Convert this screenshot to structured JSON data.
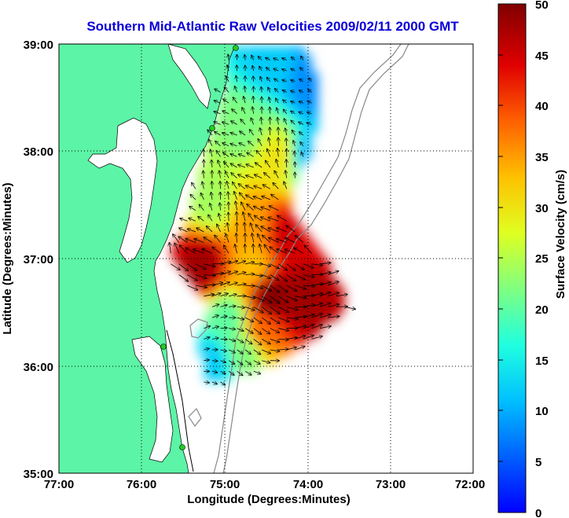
{
  "title": "Southern Mid-Atlantic Raw Velocities 2009/02/11 2000 GMT",
  "x_axis": {
    "label": "Longitude (Degrees:Minutes)",
    "ticks": [
      "77:00",
      "76:00",
      "75:00",
      "74:00",
      "73:00",
      "72:00"
    ]
  },
  "y_axis": {
    "label": "Latitude (Degrees:Minutes)",
    "ticks": [
      "39:00",
      "38:00",
      "37:00",
      "36:00",
      "35:00"
    ]
  },
  "colorbar": {
    "label": "Surface Velocity (cm/s)",
    "ticks": [
      "50",
      "45",
      "40",
      "35",
      "30",
      "25",
      "20",
      "15",
      "10",
      "5",
      "0"
    ],
    "min": 0,
    "max": 50,
    "colormap": "jet"
  },
  "colors": {
    "title": "#0a00d8",
    "land": "#5cf4a6",
    "water": "#ffffff",
    "station": "#22cc22"
  },
  "chart_data": {
    "type": "heatmap",
    "title": "Southern Mid-Atlantic Raw Velocities 2009/02/11 2000 GMT",
    "xlabel": "Longitude (Degrees:Minutes)",
    "ylabel": "Latitude (Degrees:Minutes)",
    "xlim": [
      -77,
      -72
    ],
    "ylim": [
      35,
      39
    ],
    "grid": true,
    "colorbar_range": [
      0,
      50
    ],
    "samples_cm_s": [
      {
        "lon": -74.5,
        "lat": 38.8,
        "speed": 12
      },
      {
        "lon": -74.0,
        "lat": 38.6,
        "speed": 8
      },
      {
        "lon": -74.8,
        "lat": 38.2,
        "speed": 22
      },
      {
        "lon": -74.4,
        "lat": 37.9,
        "speed": 30
      },
      {
        "lon": -74.0,
        "lat": 37.9,
        "speed": 10
      },
      {
        "lon": -75.2,
        "lat": 37.5,
        "speed": 24
      },
      {
        "lon": -74.7,
        "lat": 37.3,
        "speed": 35
      },
      {
        "lon": -74.3,
        "lat": 37.2,
        "speed": 45
      },
      {
        "lon": -75.3,
        "lat": 36.9,
        "speed": 48
      },
      {
        "lon": -74.7,
        "lat": 36.9,
        "speed": 33
      },
      {
        "lon": -74.5,
        "lat": 36.6,
        "speed": 50
      },
      {
        "lon": -74.1,
        "lat": 36.6,
        "speed": 48
      },
      {
        "lon": -75.0,
        "lat": 36.4,
        "speed": 20
      },
      {
        "lon": -74.6,
        "lat": 36.3,
        "speed": 38
      },
      {
        "lon": -75.2,
        "lat": 36.0,
        "speed": 12
      },
      {
        "lon": -74.8,
        "lat": 36.1,
        "speed": 22
      }
    ]
  }
}
